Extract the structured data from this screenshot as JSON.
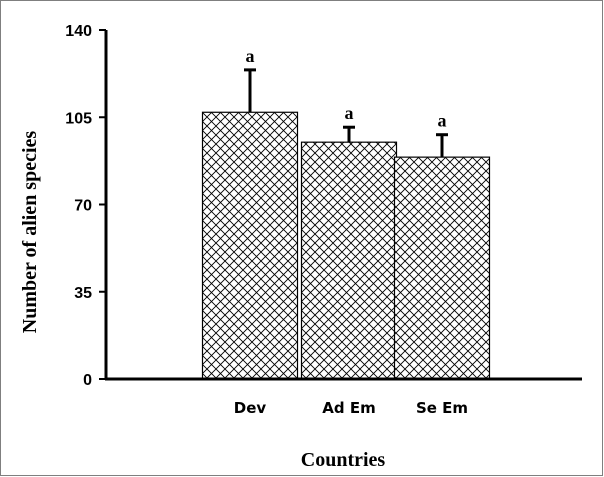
{
  "chart_data": {
    "type": "bar",
    "title": "",
    "xlabel": "Countries",
    "ylabel": "Number of alien species",
    "categories": [
      "Dev",
      "Ad Em",
      "Se Em"
    ],
    "values": [
      107,
      95,
      89
    ],
    "error_upper": [
      124,
      101,
      98
    ],
    "significance_labels": [
      "a",
      "a",
      "a"
    ],
    "ylim": [
      0,
      140
    ],
    "yticks": [
      "0",
      "35",
      "70",
      "105",
      "140"
    ],
    "ytick_values": [
      0,
      35,
      70,
      105,
      140
    ],
    "grid": false,
    "legend": "none",
    "bar_fill": "crosshatch",
    "colors": {
      "bar_outline": "#000000",
      "bar_hatch": "#000000",
      "background": "#ffffff",
      "frame": "#7f7f7f"
    }
  }
}
